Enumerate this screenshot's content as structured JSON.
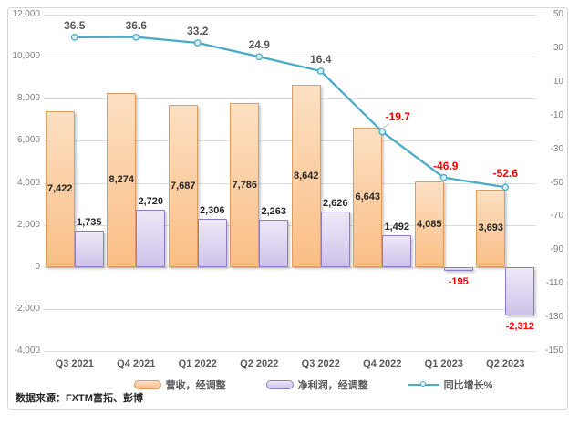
{
  "source_note": "数据来源：FXTM富拓、彭博",
  "chart_data": {
    "type": "combo-bar-line",
    "title": "",
    "categories": [
      "Q3 2021",
      "Q4 2021",
      "Q1 2022",
      "Q2 2022",
      "Q3 2022",
      "Q4 2022",
      "Q1 2023",
      "Q2 2023"
    ],
    "series": [
      {
        "name": "营收，经调整",
        "type": "bar",
        "axis": "left",
        "values": [
          7422,
          8274,
          7687,
          7786,
          8642,
          6643,
          4085,
          3693
        ],
        "labels": [
          "7,422",
          "8,274",
          "7,687",
          "7,786",
          "8,642",
          "6,643",
          "4,085",
          "3,693"
        ],
        "fill_top": "#FCE0C2",
        "fill_bottom": "#FABE86",
        "border_color": "#DC9C62"
      },
      {
        "name": "净利润，经调整",
        "type": "bar",
        "axis": "left",
        "values": [
          1735,
          2720,
          2306,
          2263,
          2626,
          1492,
          -195,
          -2312
        ],
        "labels": [
          "1,735",
          "2,720",
          "2,306",
          "2,263",
          "2,626",
          "1,492",
          "-195",
          "-2,312"
        ],
        "fill_top": "#EEE9F8",
        "fill_bottom": "#CFC2E9",
        "border_color": "#8E7CC0"
      },
      {
        "name": "同比增长%",
        "type": "line",
        "axis": "right",
        "values": [
          36.5,
          36.6,
          33.2,
          24.9,
          16.4,
          -19.7,
          -46.9,
          -52.6
        ],
        "labels": [
          "36.5",
          "36.6",
          "33.2",
          "24.9",
          "16.4",
          "-19.7",
          "-46.9",
          "-52.6"
        ],
        "line_color": "#4BACC6",
        "marker_fill": "#DCEEF5"
      }
    ],
    "left_axis": {
      "min": -4000,
      "max": 12000,
      "tick_step": 2000,
      "tick_labels": [
        "12,000",
        "10,000",
        "8,000",
        "6,000",
        "4,000",
        "2,000",
        "0",
        "-2,000",
        "-4,000"
      ]
    },
    "right_axis": {
      "min": -150,
      "max": 50,
      "tick_step": 20,
      "tick_labels": [
        "50",
        "30",
        "10",
        "-10",
        "-30",
        "-50",
        "-70",
        "-90",
        "-110",
        "-130",
        "-150"
      ]
    },
    "grid": true,
    "legend_position": "bottom",
    "label_colors": {
      "positive": "#595959",
      "negative": "#FF0000",
      "bar_value": "#262626"
    }
  }
}
